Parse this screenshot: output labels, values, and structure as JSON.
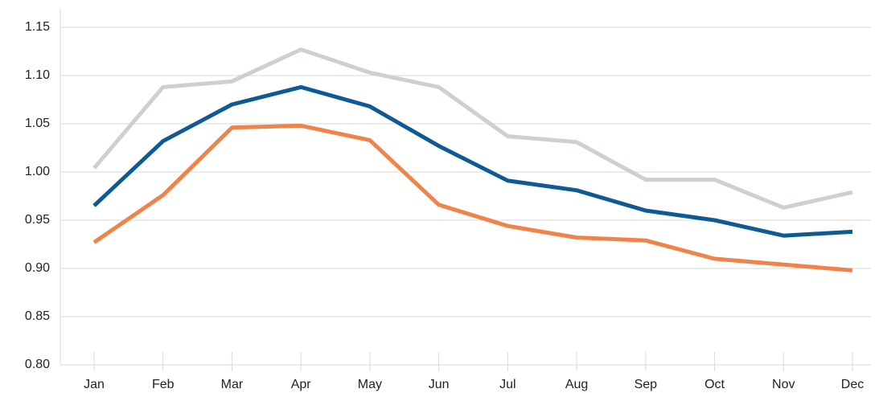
{
  "chart_data": {
    "type": "line",
    "categories": [
      "Jan",
      "Feb",
      "Mar",
      "Apr",
      "May",
      "Jun",
      "Jul",
      "Aug",
      "Sep",
      "Oct",
      "Nov",
      "Dec"
    ],
    "series": [
      {
        "color": "#ccd1ce",
        "values": [
          1.004,
          1.088,
          1.094,
          1.127,
          1.103,
          1.088,
          1.037,
          1.031,
          0.992,
          0.992,
          0.963,
          0.979
        ]
      },
      {
        "color": "#f0834a",
        "values": [
          0.927,
          0.976,
          1.046,
          1.048,
          1.033,
          0.966,
          0.944,
          0.932,
          0.929,
          0.91,
          0.904,
          0.898
        ]
      },
      {
        "color": "#0e5a94",
        "values": [
          0.965,
          1.032,
          1.07,
          1.088,
          1.068,
          1.027,
          0.991,
          0.981,
          0.96,
          0.95,
          0.934,
          0.938
        ]
      }
    ],
    "ylim": [
      0.8,
      1.17
    ],
    "yticks": [
      {
        "value": 0.8,
        "label": "0.80"
      },
      0.85,
      {
        "value": 0.9,
        "label": "0.90"
      },
      0.95,
      {
        "value": 1.0,
        "label": "1.00"
      },
      1.05,
      {
        "value": 1.1,
        "label": "1.10"
      },
      1.15
    ],
    "grid": true
  }
}
